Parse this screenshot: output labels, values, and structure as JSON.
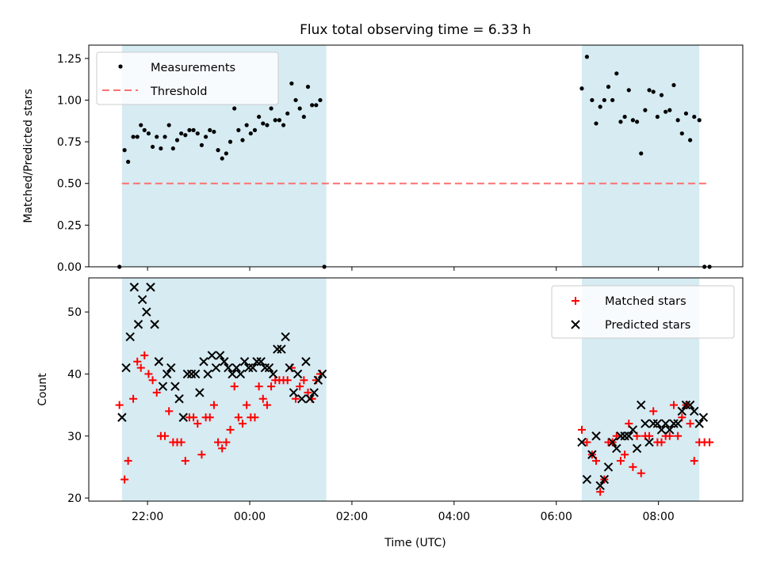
{
  "title": "Flux total observing time = 6.33 h",
  "colors": {
    "shade": "#add8e6",
    "threshold": "#ff7070",
    "matched": "#ff0000",
    "predicted": "#000000",
    "measurement": "#000000"
  },
  "chart_data": [
    {
      "type": "scatter",
      "title": "Flux total observing time = 6.33 h",
      "ylabel": "Matched/Predicted stars",
      "xlim": [
        20.85,
        33.65
      ],
      "ylim": [
        0,
        1.33
      ],
      "yticks": [
        0,
        0.25,
        0.5,
        0.75,
        1.0,
        1.25
      ],
      "ytick_labels": [
        "0.00",
        "0.25",
        "0.50",
        "0.75",
        "1.00",
        "1.25"
      ],
      "xticks": [
        22,
        24,
        26,
        28,
        30,
        32
      ],
      "grid": false,
      "legend": {
        "position": "top-left",
        "entries": [
          "Measurements",
          "Threshold"
        ]
      },
      "observing_windows": [
        [
          21.5,
          25.5
        ],
        [
          30.5,
          32.8
        ]
      ],
      "threshold": {
        "name": "Threshold",
        "value": 0.5,
        "x_range": [
          21.5,
          33.0
        ]
      },
      "series": [
        {
          "name": "Measurements",
          "marker": "dot",
          "x": [
            21.45,
            21.55,
            21.62,
            21.72,
            21.8,
            21.87,
            21.94,
            22.02,
            22.1,
            22.18,
            22.26,
            22.34,
            22.42,
            22.5,
            22.58,
            22.66,
            22.74,
            22.82,
            22.9,
            22.98,
            23.06,
            23.14,
            23.22,
            23.3,
            23.38,
            23.46,
            23.54,
            23.62,
            23.7,
            23.78,
            23.86,
            23.94,
            24.02,
            24.1,
            24.18,
            24.26,
            24.34,
            24.42,
            24.5,
            24.58,
            24.66,
            24.74,
            24.82,
            24.9,
            24.98,
            25.06,
            25.14,
            25.22,
            25.3,
            25.38,
            25.46,
            30.5,
            30.6,
            30.7,
            30.78,
            30.86,
            30.94,
            31.02,
            31.1,
            31.18,
            31.26,
            31.34,
            31.42,
            31.5,
            31.58,
            31.66,
            31.74,
            31.82,
            31.9,
            31.98,
            32.06,
            32.14,
            32.22,
            32.3,
            32.38,
            32.46,
            32.54,
            32.62,
            32.7,
            32.8,
            32.9,
            33.0
          ],
          "y": [
            0.0,
            0.7,
            0.63,
            0.78,
            0.78,
            0.85,
            0.82,
            0.8,
            0.72,
            0.78,
            0.71,
            0.78,
            0.85,
            0.71,
            0.76,
            0.8,
            0.79,
            0.82,
            0.82,
            0.8,
            0.73,
            0.78,
            0.82,
            0.81,
            0.7,
            0.65,
            0.68,
            0.75,
            0.95,
            0.82,
            0.76,
            0.85,
            0.8,
            0.82,
            0.9,
            0.86,
            0.85,
            0.95,
            0.88,
            0.88,
            0.85,
            0.92,
            1.1,
            1.0,
            0.95,
            0.9,
            1.08,
            0.97,
            0.97,
            1.0,
            0.0,
            1.07,
            1.26,
            1.0,
            0.86,
            0.96,
            1.0,
            1.08,
            1.0,
            1.16,
            0.87,
            0.9,
            1.06,
            0.88,
            0.87,
            0.68,
            0.94,
            1.06,
            1.05,
            0.9,
            1.03,
            0.93,
            0.94,
            1.09,
            0.88,
            0.8,
            0.92,
            0.76,
            0.9,
            0.88,
            0.0,
            0.0
          ]
        }
      ]
    },
    {
      "type": "scatter",
      "xlabel": "Time (UTC)",
      "ylabel": "Count",
      "xlim": [
        20.85,
        33.65
      ],
      "ylim": [
        19.5,
        55.5
      ],
      "yticks": [
        20,
        30,
        40,
        50
      ],
      "xticks": [
        22,
        24,
        26,
        28,
        30,
        32
      ],
      "xtick_labels": [
        "22:00",
        "00:00",
        "02:00",
        "04:00",
        "06:00",
        "08:00"
      ],
      "grid": false,
      "legend": {
        "position": "top-right",
        "entries": [
          "Matched stars",
          "Predicted stars"
        ]
      },
      "observing_windows": [
        [
          21.5,
          25.5
        ],
        [
          30.5,
          32.8
        ]
      ],
      "series": [
        {
          "name": "Matched stars",
          "marker": "plus",
          "x": [
            21.45,
            21.55,
            21.62,
            21.72,
            21.8,
            21.87,
            21.94,
            22.02,
            22.1,
            22.18,
            22.26,
            22.34,
            22.42,
            22.5,
            22.58,
            22.66,
            22.74,
            22.82,
            22.9,
            22.98,
            23.06,
            23.14,
            23.22,
            23.3,
            23.38,
            23.46,
            23.54,
            23.62,
            23.7,
            23.78,
            23.86,
            23.94,
            24.02,
            24.1,
            24.18,
            24.26,
            24.34,
            24.42,
            24.5,
            24.58,
            24.66,
            24.74,
            24.82,
            24.9,
            24.98,
            25.06,
            25.14,
            25.22,
            25.3,
            25.38,
            30.5,
            30.6,
            30.7,
            30.78,
            30.86,
            30.94,
            31.02,
            31.1,
            31.18,
            31.26,
            31.34,
            31.42,
            31.5,
            31.58,
            31.66,
            31.74,
            31.82,
            31.9,
            31.98,
            32.06,
            32.14,
            32.22,
            32.3,
            32.38,
            32.46,
            32.54,
            32.62,
            32.7,
            32.8,
            32.9,
            33.0
          ],
          "y": [
            35,
            23,
            26,
            36,
            42,
            41,
            43,
            40,
            39,
            37,
            30,
            30,
            34,
            29,
            29,
            29,
            26,
            33,
            33,
            32,
            27,
            33,
            33,
            35,
            29,
            28,
            29,
            31,
            38,
            33,
            32,
            35,
            33,
            33,
            38,
            36,
            35,
            38,
            39,
            39,
            39,
            39,
            41,
            36,
            38,
            39,
            37,
            36,
            39,
            40,
            31,
            29,
            27,
            26,
            21,
            23,
            29,
            29,
            30,
            26,
            27,
            32,
            25,
            30,
            24,
            30,
            30,
            34,
            29,
            29,
            30,
            30,
            35,
            30,
            33,
            35,
            32,
            26,
            29,
            29,
            29
          ]
        },
        {
          "name": "Predicted stars",
          "marker": "x",
          "x": [
            21.5,
            21.58,
            21.66,
            21.74,
            21.82,
            21.9,
            21.98,
            22.06,
            22.14,
            22.22,
            22.3,
            22.38,
            22.46,
            22.54,
            22.62,
            22.7,
            22.78,
            22.86,
            22.94,
            23.02,
            23.1,
            23.18,
            23.26,
            23.34,
            23.42,
            23.5,
            23.58,
            23.66,
            23.74,
            23.82,
            23.9,
            23.98,
            24.06,
            24.14,
            24.22,
            24.3,
            24.38,
            24.46,
            24.54,
            24.62,
            24.7,
            24.78,
            24.86,
            24.94,
            25.02,
            25.1,
            25.18,
            25.26,
            25.34,
            25.42,
            30.5,
            30.6,
            30.7,
            30.78,
            30.86,
            30.94,
            31.02,
            31.1,
            31.18,
            31.26,
            31.34,
            31.42,
            31.5,
            31.58,
            31.66,
            31.74,
            31.82,
            31.9,
            31.98,
            32.06,
            32.14,
            32.22,
            32.3,
            32.38,
            32.46,
            32.54,
            32.62,
            32.7,
            32.8,
            32.88
          ],
          "y": [
            33,
            41,
            46,
            54,
            48,
            52,
            50,
            54,
            48,
            42,
            38,
            40,
            41,
            38,
            36,
            33,
            40,
            40,
            40,
            37,
            42,
            40,
            43,
            41,
            43,
            42,
            41,
            40,
            41,
            40,
            42,
            41,
            41,
            42,
            42,
            41,
            41,
            40,
            44,
            44,
            46,
            41,
            37,
            40,
            36,
            42,
            36,
            37,
            39,
            40,
            29,
            23,
            27,
            30,
            22,
            23,
            25,
            29,
            28,
            30,
            30,
            30,
            31,
            28,
            35,
            32,
            29,
            32,
            32,
            31,
            32,
            31,
            32,
            32,
            34,
            35,
            35,
            34,
            32,
            33
          ]
        }
      ]
    }
  ]
}
